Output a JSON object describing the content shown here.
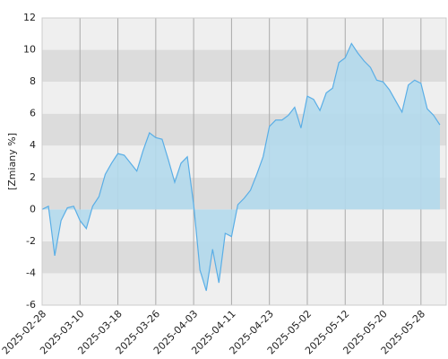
{
  "chart_data": {
    "type": "area",
    "y_label": "[Zmiany %]",
    "categories": [
      "2025-02-28",
      null,
      null,
      null,
      null,
      null,
      "2025-03-10",
      null,
      null,
      null,
      null,
      null,
      "2025-03-18",
      null,
      null,
      null,
      null,
      null,
      "2025-03-26",
      null,
      null,
      null,
      null,
      null,
      "2025-04-03",
      null,
      null,
      null,
      null,
      null,
      "2025-04-11",
      null,
      null,
      null,
      null,
      null,
      "2025-04-23",
      null,
      null,
      null,
      null,
      null,
      "2025-05-02",
      null,
      null,
      null,
      null,
      null,
      "2025-05-12",
      null,
      null,
      null,
      null,
      null,
      "2025-05-20",
      null,
      null,
      null,
      null,
      null,
      "2025-05-28",
      null,
      null,
      null
    ],
    "values": [
      0,
      0.2,
      -2.9,
      -0.7,
      0.1,
      0.2,
      -0.7,
      -1.2,
      0.2,
      0.8,
      2.2,
      2.9,
      3.5,
      3.4,
      2.9,
      2.4,
      3.7,
      4.8,
      4.5,
      4.4,
      3.1,
      1.7,
      2.9,
      3.3,
      0.3,
      -3.8,
      -5.1,
      -2.5,
      -4.6,
      -1.5,
      -1.7,
      0.3,
      0.7,
      1.2,
      2.2,
      3.3,
      5.2,
      5.6,
      5.6,
      5.9,
      6.4,
      5.1,
      7.1,
      6.9,
      6.2,
      7.3,
      7.6,
      9.2,
      9.5,
      10.4,
      9.8,
      9.3,
      8.9,
      8.1,
      8.0,
      7.5,
      6.8,
      6.1,
      7.8,
      8.1,
      7.9,
      6.3,
      5.9,
      5.3
    ],
    "color": "#5aaee6",
    "fill": "#b3d9ec",
    "ylim": [
      -6,
      12
    ],
    "yticks": [
      -6,
      -4,
      -2,
      0,
      2,
      4,
      6,
      8,
      10,
      12
    ],
    "band_colors": [
      "#efefef",
      "#dcdcdc"
    ],
    "grid": true
  }
}
